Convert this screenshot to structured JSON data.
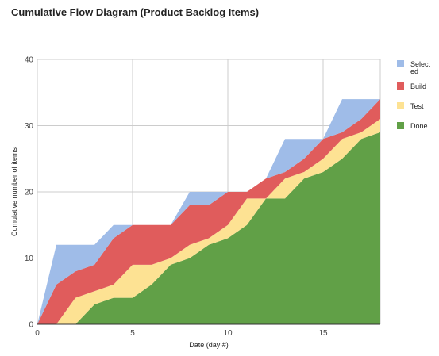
{
  "chart_data": {
    "type": "area",
    "stacked": true,
    "title": "Cumulative Flow Diagram (Product Backlog Items)",
    "xlabel": "Date (day #)",
    "ylabel": "Cumulative number of items",
    "xlim": [
      0,
      18
    ],
    "ylim": [
      0,
      40
    ],
    "x_ticks": [
      0,
      5,
      10,
      15
    ],
    "y_ticks": [
      0,
      10,
      20,
      30,
      40
    ],
    "grid": true,
    "legend_position": "right",
    "x": [
      0,
      1,
      2,
      3,
      4,
      5,
      6,
      7,
      8,
      9,
      10,
      11,
      12,
      13,
      14,
      15,
      16,
      17,
      18
    ],
    "series": [
      {
        "name": "Done",
        "color": "#61a047",
        "values": [
          0,
          0,
          0,
          3,
          4,
          4,
          6,
          9,
          10,
          12,
          13,
          15,
          19,
          19,
          22,
          23,
          25,
          28,
          29
        ]
      },
      {
        "name": "Test",
        "color": "#fde293",
        "values": [
          0,
          0,
          4,
          2,
          2,
          5,
          3,
          1,
          2,
          1,
          2,
          4,
          0,
          3,
          1,
          2,
          3,
          1,
          2
        ]
      },
      {
        "name": "Build",
        "color": "#e05c5c",
        "values": [
          0,
          6,
          4,
          4,
          7,
          6,
          6,
          5,
          6,
          5,
          5,
          1,
          3,
          1,
          2,
          3,
          1,
          2,
          3
        ]
      },
      {
        "name": "Selected",
        "legend_label": [
          "Select",
          "ed"
        ],
        "color": "#9fbce8",
        "values": [
          0,
          6,
          4,
          3,
          2,
          0,
          0,
          0,
          2,
          2,
          0,
          0,
          0,
          5,
          3,
          0,
          5,
          3,
          0
        ]
      }
    ]
  }
}
